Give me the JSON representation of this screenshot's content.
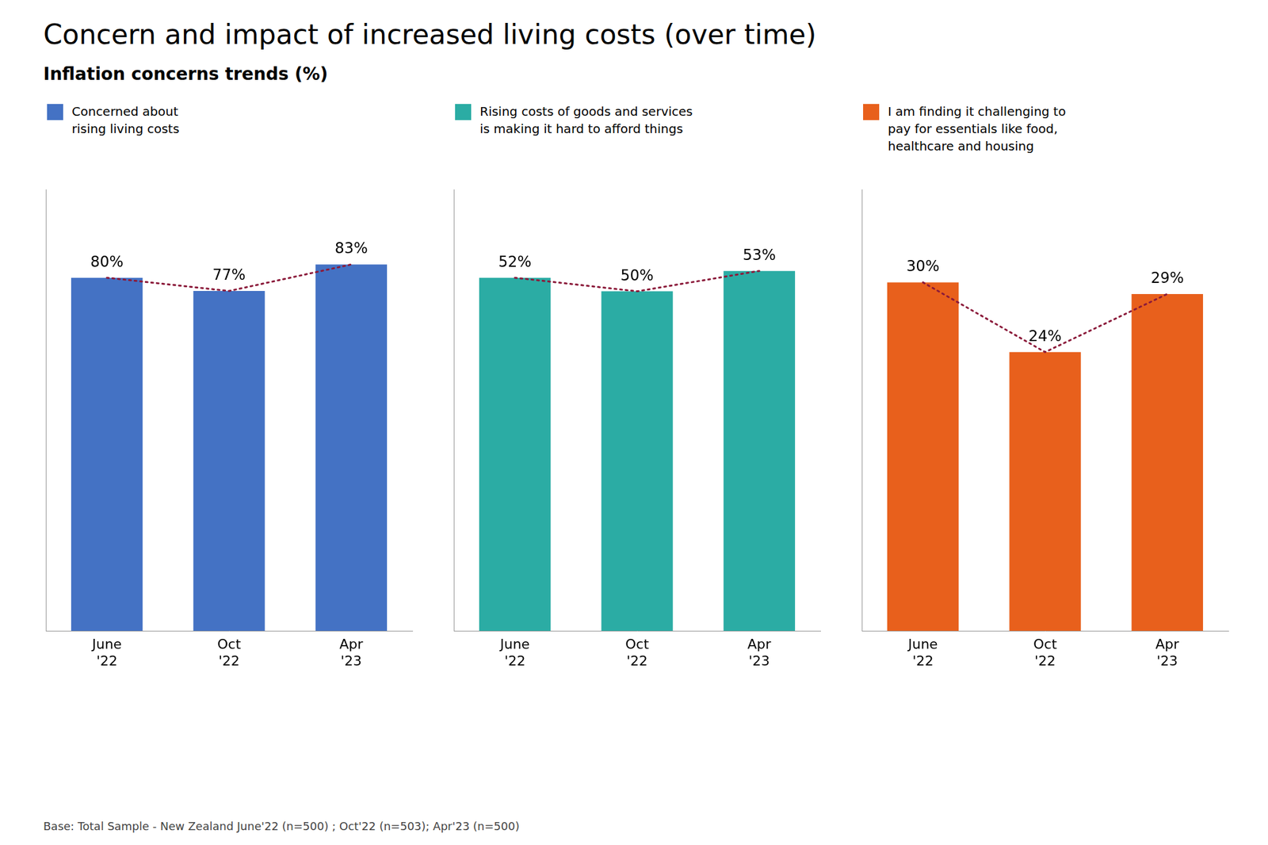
{
  "title": "Concern and impact of increased living costs (over time)",
  "subtitle": "Inflation concerns trends (%)",
  "annotations": [
    "Base:  Total Sample - New Zealand June'22 (n=500) ; Oct'22 (n=503); Apr'23 (n=500)"
  ],
  "chart_data": [
    {
      "type": "bar",
      "categories": [
        "June\n'22",
        "Oct\n'22",
        "Apr\n'23"
      ],
      "series": [
        {
          "name": "Concerned about\nrising living costs",
          "color": "#4472C4",
          "values": [
            80,
            77,
            83
          ],
          "value_labels": [
            "80%",
            "77%",
            "83%"
          ]
        },
        {
          "type": "line",
          "line_style": "dotted",
          "color": "#8B1A3A",
          "values": [
            80,
            77,
            83
          ]
        }
      ],
      "ylim": [
        0,
        100
      ],
      "grid": false,
      "legend": "top",
      "data_labels": true,
      "tick_labels": "x"
    },
    {
      "type": "bar",
      "categories": [
        "June\n'22",
        "Oct\n'22",
        "Apr\n'23"
      ],
      "series": [
        {
          "name": "Rising costs of goods and services\nis making it hard to afford things",
          "color": "#2BACA4",
          "values": [
            52,
            50,
            53
          ],
          "value_labels": [
            "52%",
            "50%",
            "53%"
          ]
        },
        {
          "type": "line",
          "line_style": "dotted",
          "color": "#8B1A3A",
          "values": [
            52,
            50,
            53
          ]
        }
      ],
      "ylim": [
        0,
        65
      ],
      "grid": false,
      "legend": "top",
      "data_labels": true,
      "tick_labels": "x"
    },
    {
      "type": "bar",
      "categories": [
        "June\n'22",
        "Oct\n'22",
        "Apr\n'23"
      ],
      "series": [
        {
          "name": "I am finding it challenging to\npay for essentials like food,\nhealthcare and housing",
          "color": "#E8601C",
          "values": [
            30,
            24,
            29
          ],
          "value_labels": [
            "30%",
            "24%",
            "29%"
          ]
        },
        {
          "type": "line",
          "line_style": "dotted",
          "color": "#8B1A3A",
          "values": [
            30,
            24,
            29
          ]
        }
      ],
      "ylim": [
        0,
        38
      ],
      "grid": false,
      "legend": "top",
      "data_labels": true,
      "tick_labels": "x"
    }
  ]
}
